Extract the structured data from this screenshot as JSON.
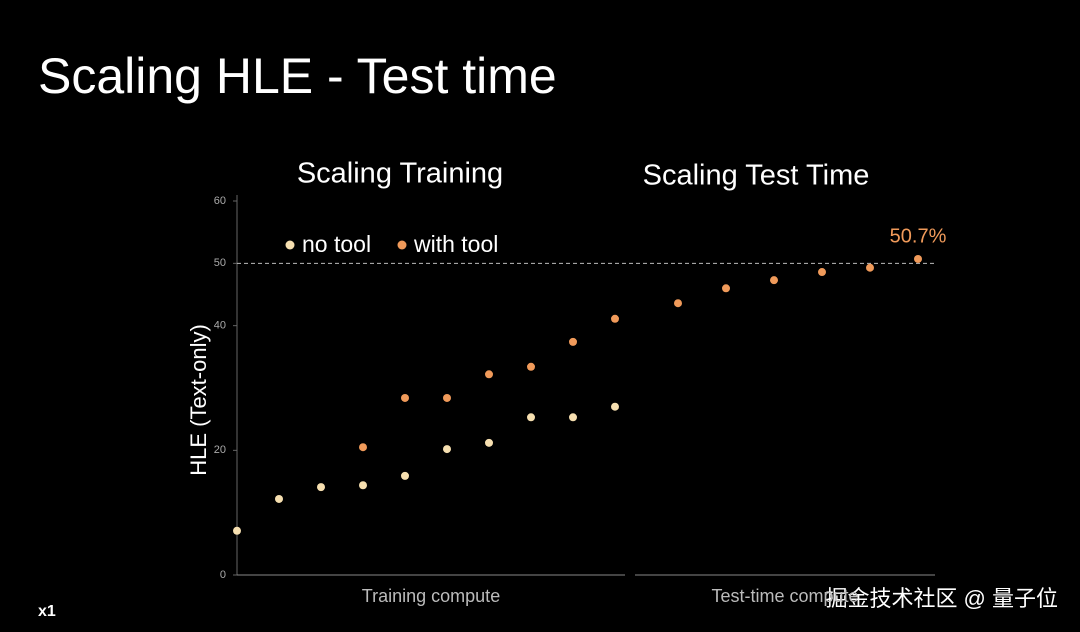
{
  "chart_data": {
    "type": "scatter",
    "title": "Scaling HLE - Test time",
    "ylabel": "HLE (Text-only)",
    "ylim": [
      0,
      60
    ],
    "yticks": [
      0,
      20,
      40,
      50,
      60
    ],
    "hline": 50,
    "sections": [
      {
        "title": "Scaling Training",
        "xlabel": "Training compute",
        "categories": [
          null,
          null,
          null,
          null,
          null,
          null,
          null,
          null,
          null,
          null
        ]
      },
      {
        "title": "Scaling Test Time",
        "xlabel": "Test-time compute",
        "categories": [
          null,
          null,
          null,
          null,
          null,
          null
        ]
      }
    ],
    "series": [
      {
        "name": "no tool",
        "color": "#f6dfb0",
        "values": [
          7.1,
          12.2,
          14.1,
          14.4,
          15.9,
          20.2,
          21.2,
          25.3,
          25.3,
          27.0,
          null,
          null,
          null,
          null,
          null,
          null
        ]
      },
      {
        "name": "with tool",
        "color": "#f09a5a",
        "values": [
          null,
          null,
          null,
          20.5,
          28.4,
          28.4,
          32.2,
          33.4,
          37.4,
          41.1,
          43.6,
          46.0,
          47.3,
          48.6,
          49.3,
          50.7
        ],
        "value_labels": [
          null,
          null,
          null,
          null,
          null,
          null,
          null,
          null,
          null,
          null,
          null,
          null,
          null,
          null,
          null,
          "50.7%"
        ]
      }
    ],
    "legend": "top-left",
    "logo": "x1",
    "watermark": "掘金技术社区 @ 量子位"
  }
}
